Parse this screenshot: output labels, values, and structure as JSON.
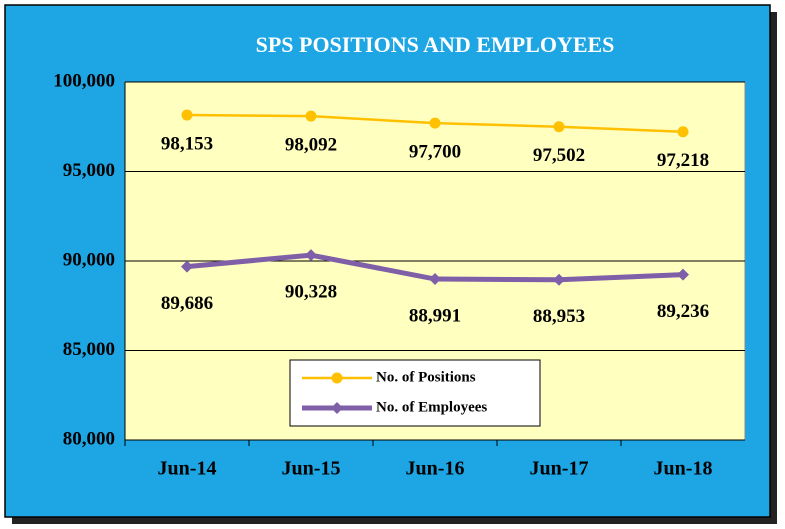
{
  "chart_data": {
    "type": "line",
    "title": "SPS POSITIONS AND EMPLOYEES",
    "categories": [
      "Jun-14",
      "Jun-15",
      "Jun-16",
      "Jun-17",
      "Jun-18"
    ],
    "series": [
      {
        "name": "No. of Positions",
        "color": "#FFC000",
        "marker": "circle",
        "values": [
          98153,
          98092,
          97700,
          97502,
          97218
        ],
        "value_labels": [
          "98,153",
          "98,092",
          "97,700",
          "97,502",
          "97,218"
        ]
      },
      {
        "name": "No. of Employees",
        "color": "#7F5FA8",
        "marker": "diamond",
        "values": [
          89686,
          90328,
          88991,
          88953,
          89236
        ],
        "value_labels": [
          "89,686",
          "90,328",
          "88,991",
          "88,953",
          "89,236"
        ]
      }
    ],
    "ylim": [
      80000,
      100000
    ],
    "yticks": [
      {
        "value": 80000,
        "label": "80,000"
      },
      {
        "value": 85000,
        "label": "85,000"
      },
      {
        "value": 90000,
        "label": "90,000"
      },
      {
        "value": 95000,
        "label": "95,000"
      },
      {
        "value": 100000,
        "label": "100,000"
      }
    ],
    "grid": true,
    "legend": "bottom"
  }
}
